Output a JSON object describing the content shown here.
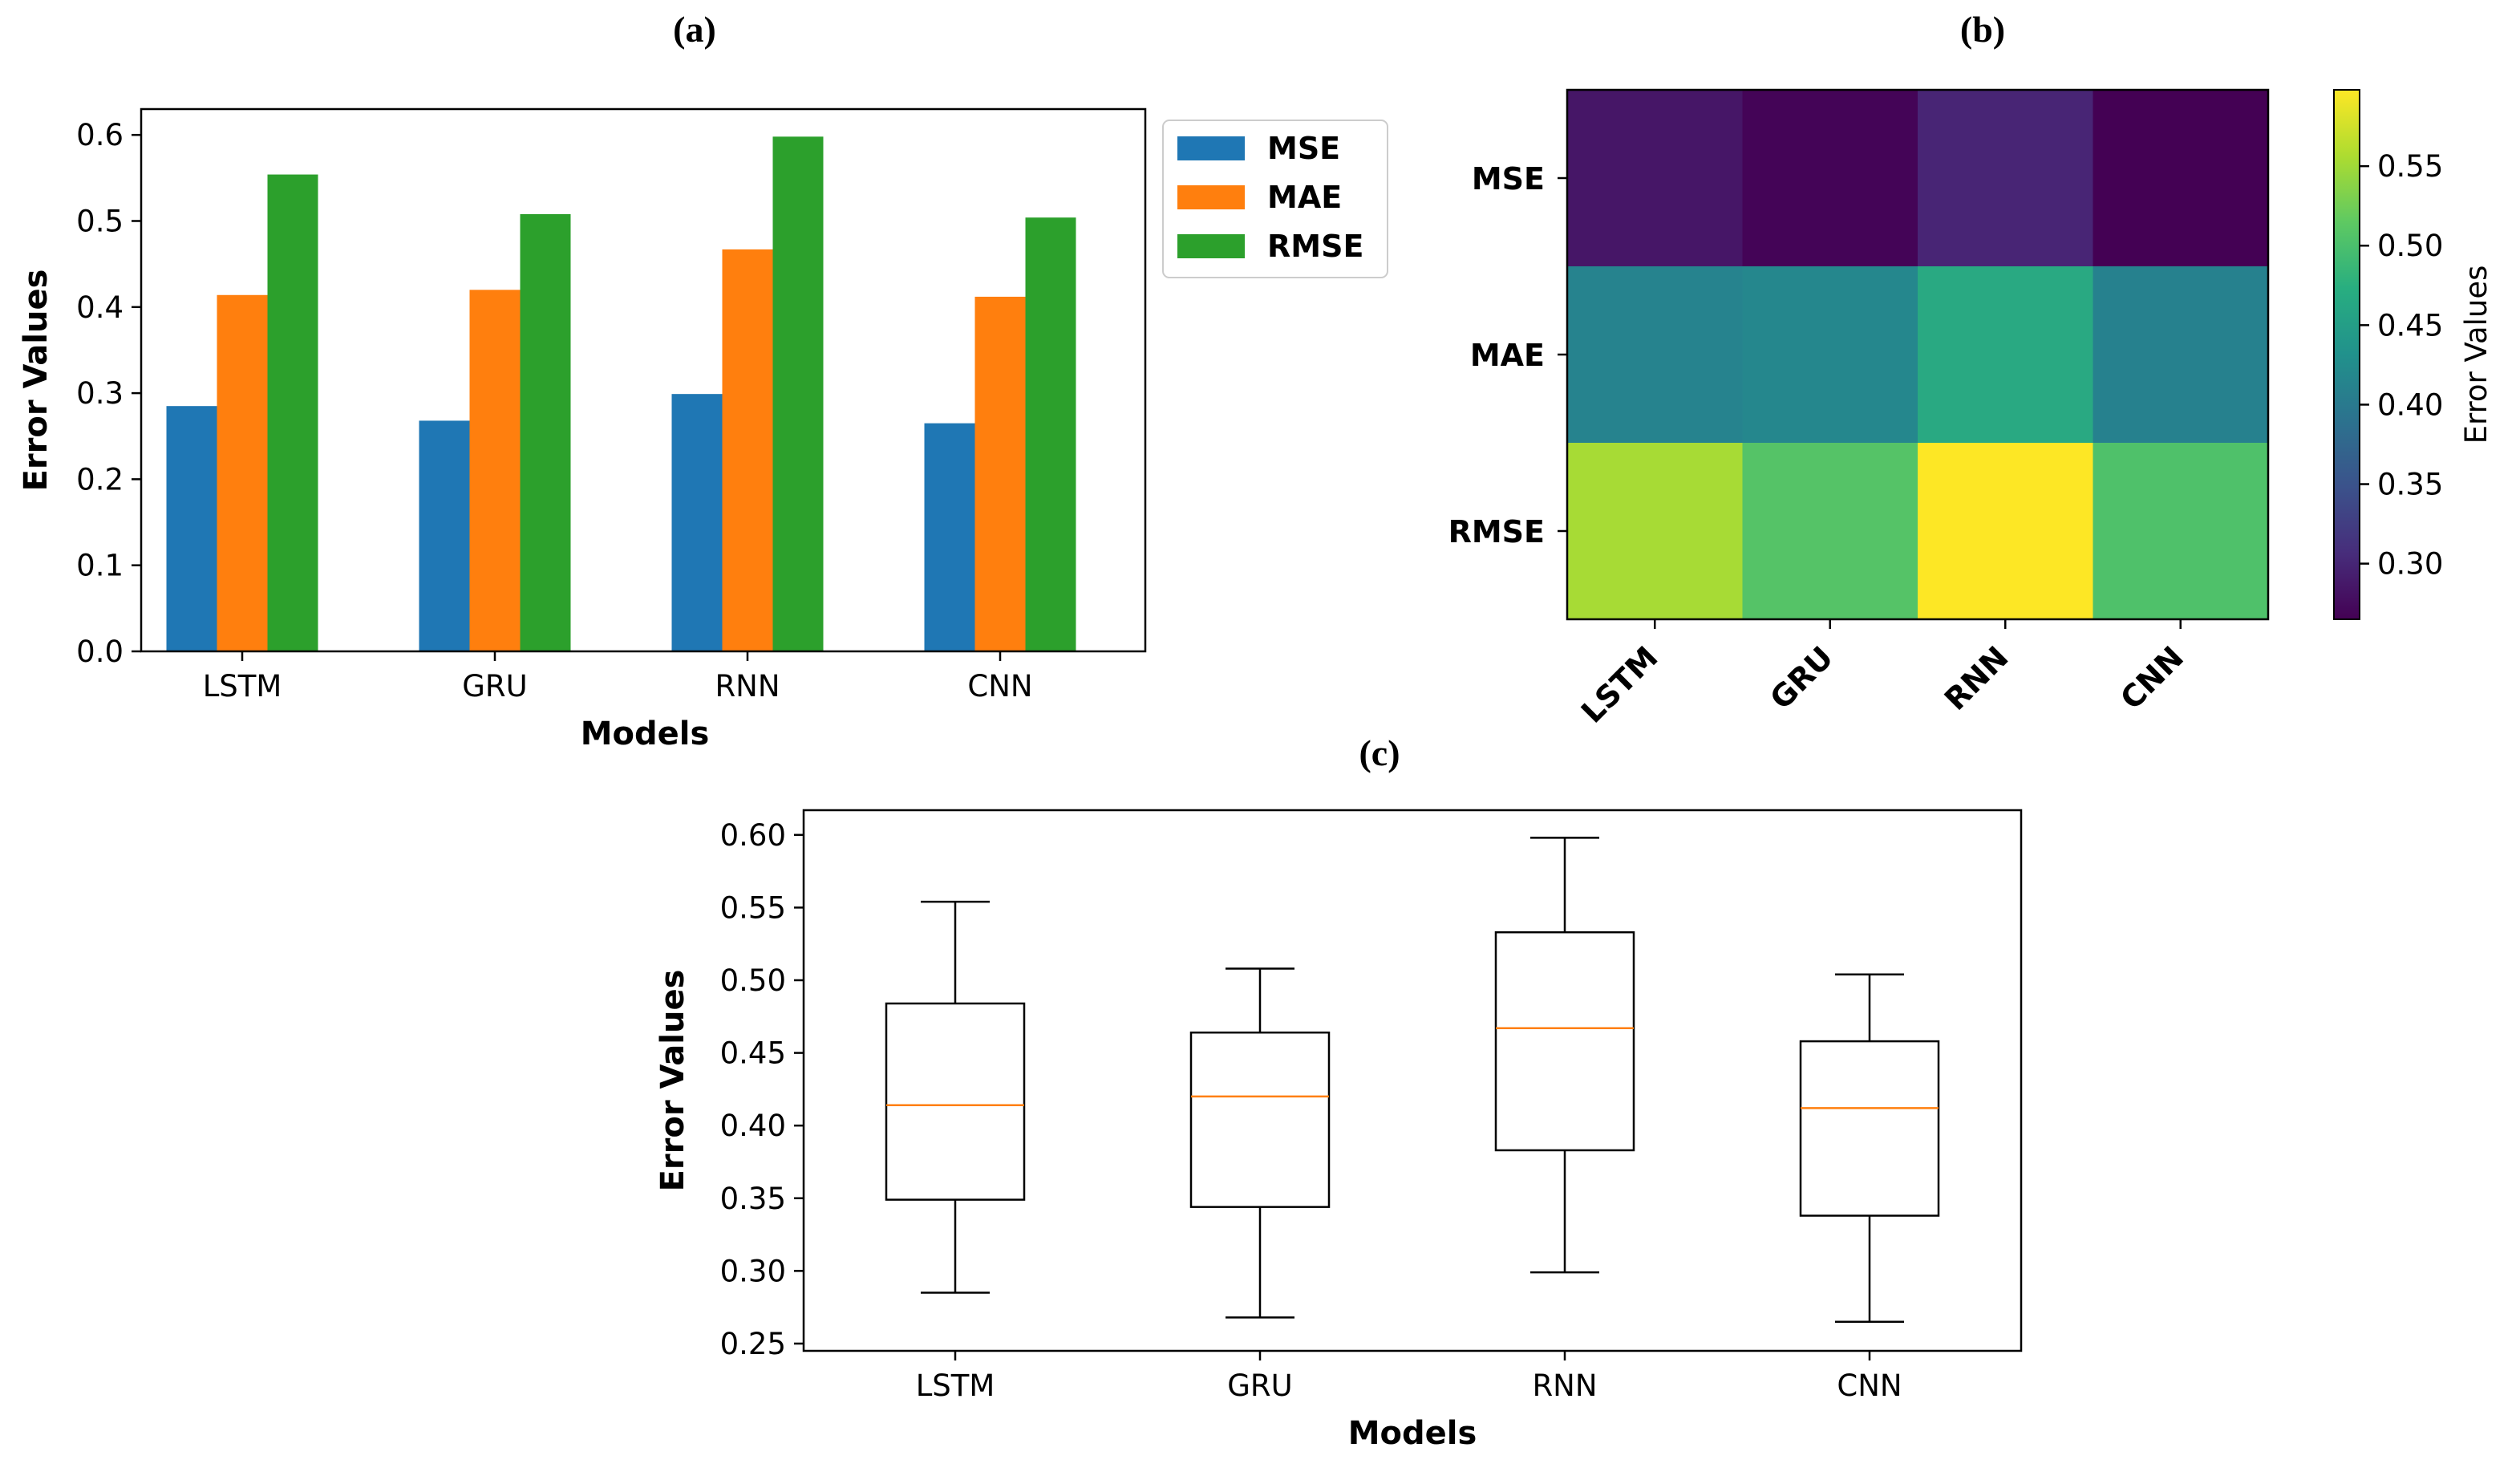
{
  "chart_data": [
    {
      "type": "bar",
      "panel_label": "(a)",
      "categories": [
        "LSTM",
        "GRU",
        "RNN",
        "CNN"
      ],
      "series": [
        {
          "name": "MSE",
          "color": "#1f77b4",
          "values": [
            0.285,
            0.268,
            0.299,
            0.265
          ]
        },
        {
          "name": "MAE",
          "color": "#ff7f0e",
          "values": [
            0.414,
            0.42,
            0.467,
            0.412
          ]
        },
        {
          "name": "RMSE",
          "color": "#2ca02c",
          "values": [
            0.554,
            0.508,
            0.598,
            0.504
          ]
        }
      ],
      "xlabel": "Models",
      "ylabel": "Error Values",
      "ylim": [
        0,
        0.63
      ],
      "yticks": [
        "0.0",
        "0.1",
        "0.2",
        "0.3",
        "0.4",
        "0.5",
        "0.6"
      ],
      "ytick_values": [
        0,
        0.1,
        0.2,
        0.3,
        0.4,
        0.5,
        0.6
      ],
      "legend_position": "outside-right-top"
    },
    {
      "type": "heatmap",
      "panel_label": "(b)",
      "rows": [
        "MSE",
        "MAE",
        "RMSE"
      ],
      "columns": [
        "LSTM",
        "GRU",
        "RNN",
        "CNN"
      ],
      "values": [
        [
          0.285,
          0.268,
          0.299,
          0.265
        ],
        [
          0.414,
          0.42,
          0.467,
          0.412
        ],
        [
          0.554,
          0.508,
          0.598,
          0.504
        ]
      ],
      "colormap": "viridis",
      "vmin": 0.265,
      "vmax": 0.598,
      "colorbar_label": "Error Values",
      "colorbar_ticks": [
        "0.30",
        "0.35",
        "0.40",
        "0.45",
        "0.50",
        "0.55"
      ],
      "colorbar_tick_values": [
        0.3,
        0.35,
        0.4,
        0.45,
        0.5,
        0.55
      ]
    },
    {
      "type": "box",
      "panel_label": "(c)",
      "categories": [
        "LSTM",
        "GRU",
        "RNN",
        "CNN"
      ],
      "boxes": [
        {
          "min": 0.285,
          "q1": 0.349,
          "median": 0.414,
          "q3": 0.484,
          "max": 0.554
        },
        {
          "min": 0.268,
          "q1": 0.344,
          "median": 0.42,
          "q3": 0.464,
          "max": 0.508
        },
        {
          "min": 0.299,
          "q1": 0.383,
          "median": 0.467,
          "q3": 0.533,
          "max": 0.598
        },
        {
          "min": 0.265,
          "q1": 0.338,
          "median": 0.412,
          "q3": 0.458,
          "max": 0.504
        }
      ],
      "median_color": "#ff7f0e",
      "xlabel": "Models",
      "ylabel": "Error Values",
      "ylim": [
        0.245,
        0.617
      ],
      "yticks": [
        "0.25",
        "0.30",
        "0.35",
        "0.40",
        "0.45",
        "0.50",
        "0.55",
        "0.60"
      ],
      "ytick_values": [
        0.25,
        0.3,
        0.35,
        0.4,
        0.45,
        0.5,
        0.55,
        0.6
      ]
    }
  ]
}
